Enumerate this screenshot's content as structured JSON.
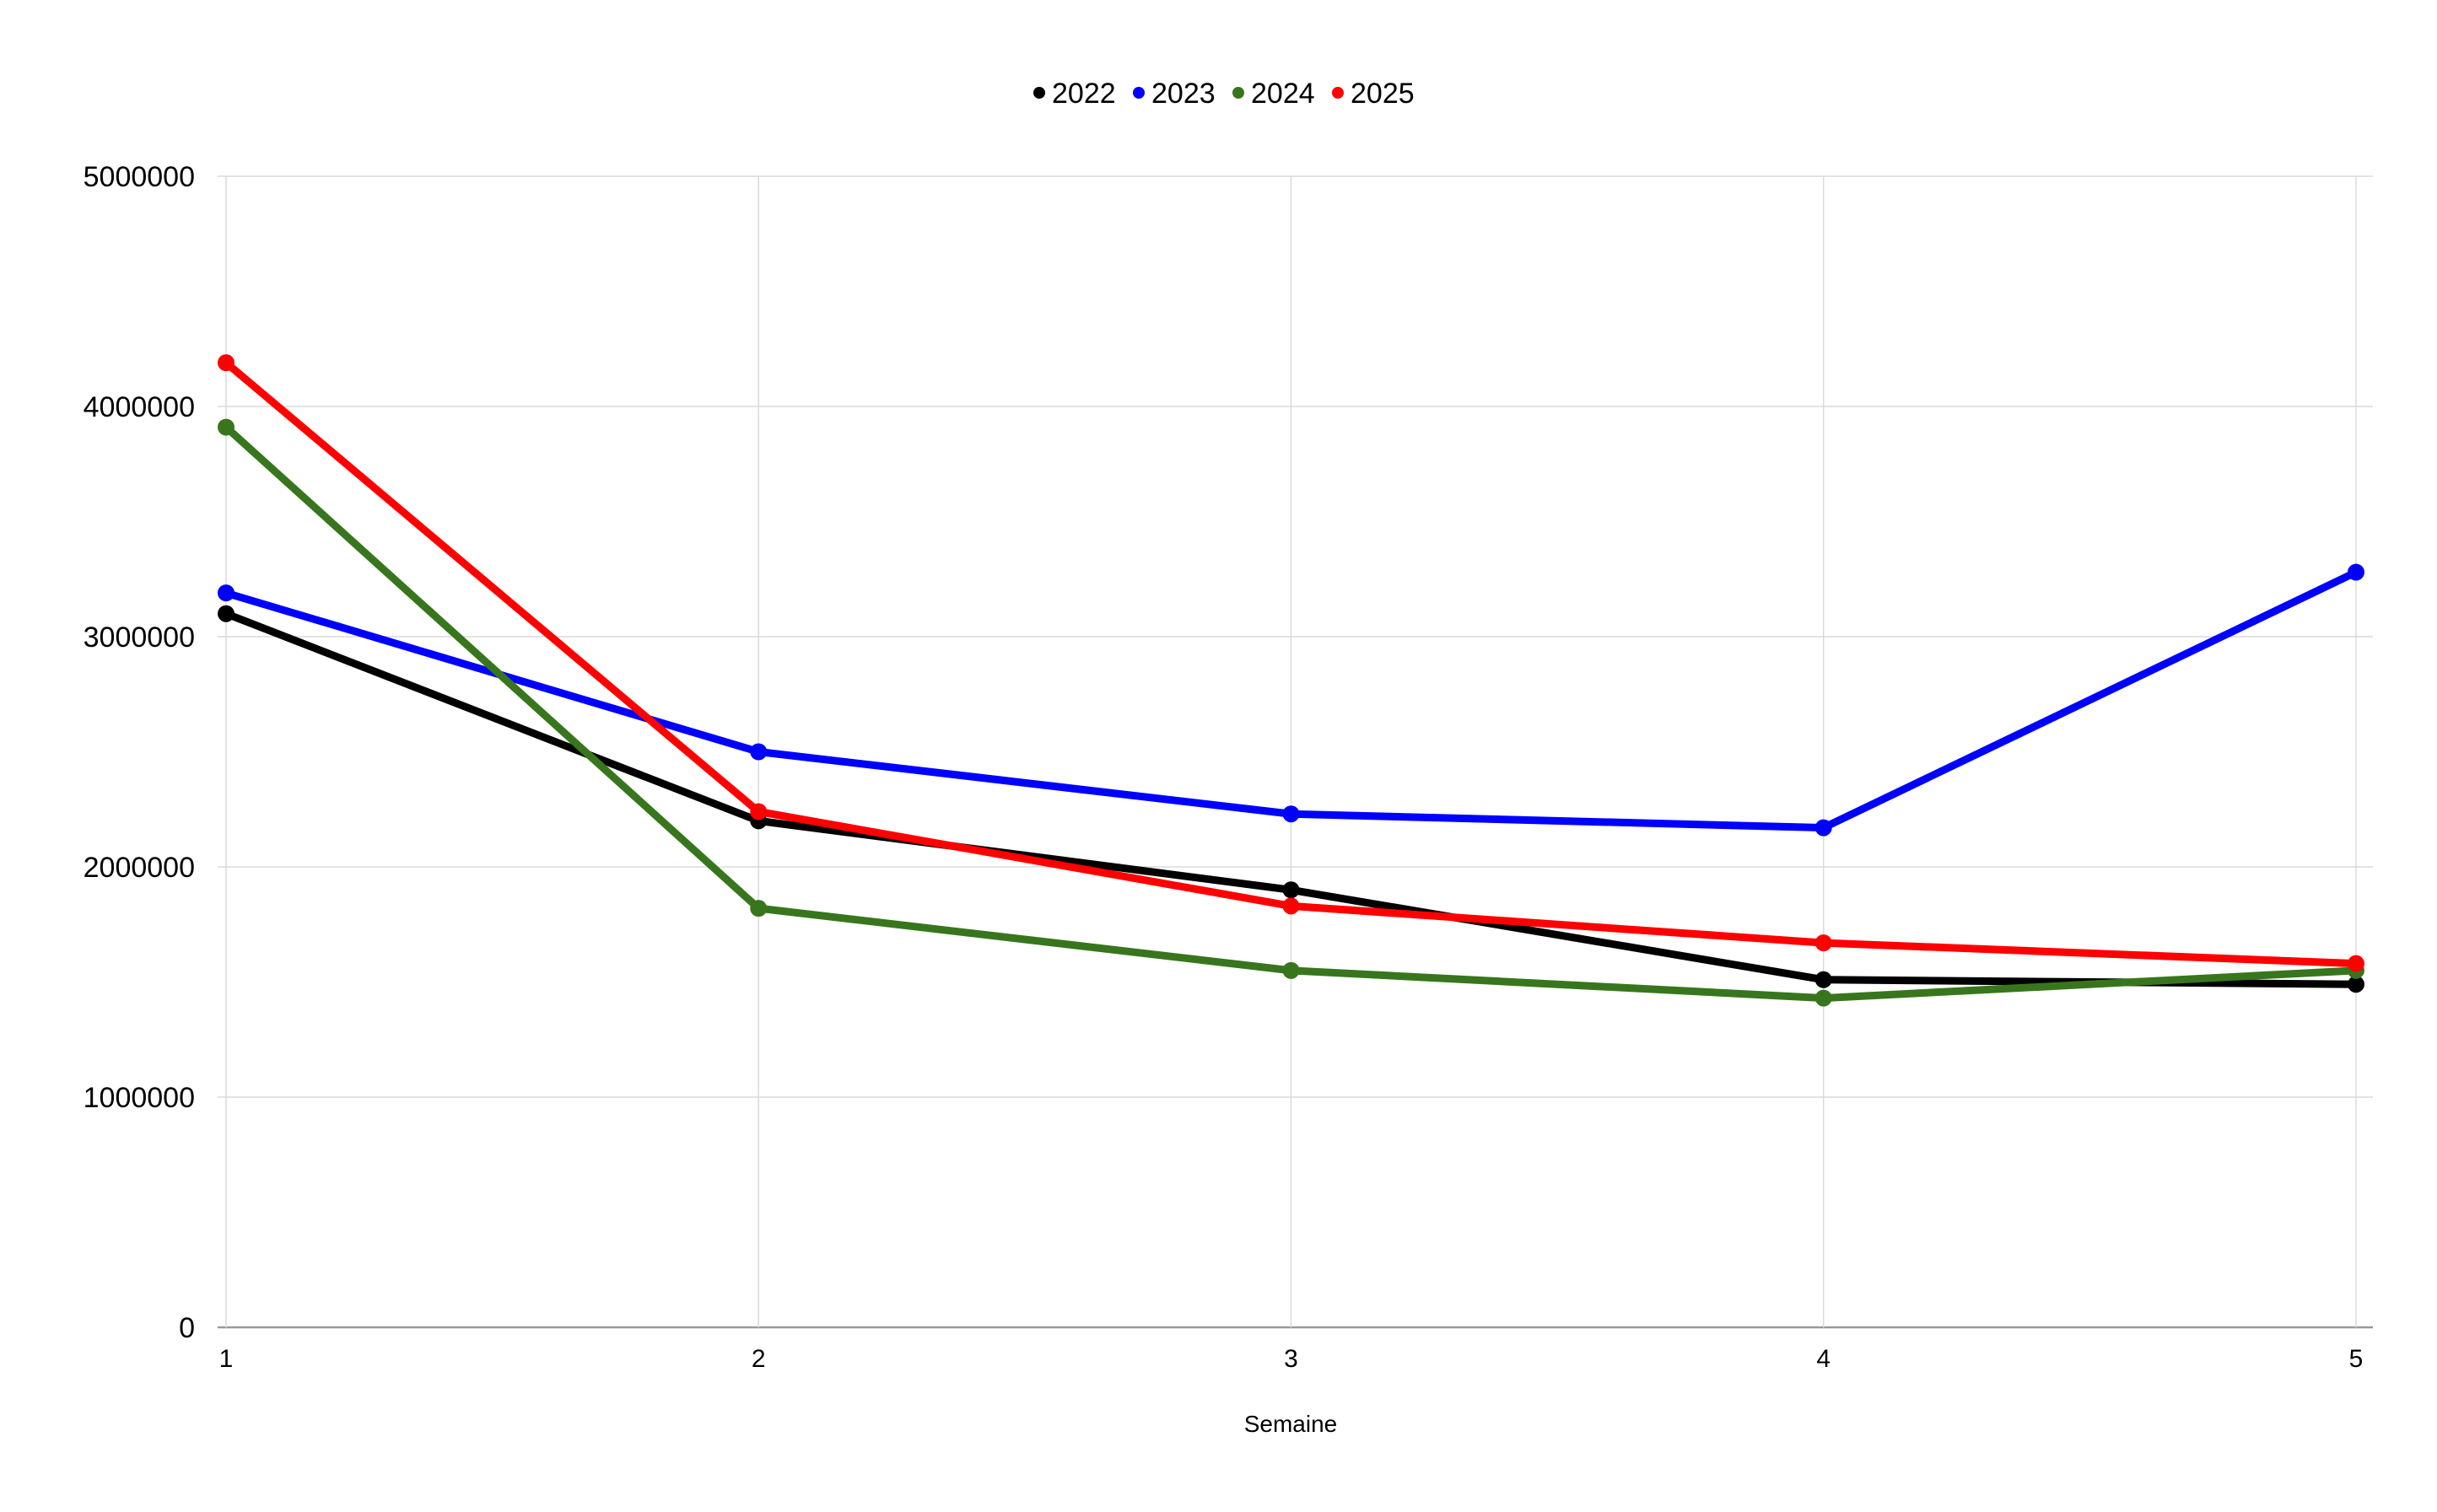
{
  "chart_data": {
    "type": "line",
    "title": "",
    "xlabel": "Semaine",
    "ylabel": "",
    "categories": [
      "1",
      "2",
      "3",
      "4",
      "5"
    ],
    "ylim": [
      0,
      5000000
    ],
    "yticks": [
      "0",
      "1000000",
      "2000000",
      "3000000",
      "4000000",
      "5000000"
    ],
    "grid": true,
    "legend_position": "top",
    "series": [
      {
        "name": "2022",
        "color": "#000000",
        "values": [
          3100000,
          2200000,
          1900000,
          1510000,
          1490000
        ]
      },
      {
        "name": "2023",
        "color": "#0000ff",
        "values": [
          3190000,
          2500000,
          2230000,
          2170000,
          3280000
        ]
      },
      {
        "name": "2024",
        "color": "#38761d",
        "values": [
          3910000,
          1820000,
          1550000,
          1430000,
          1550000
        ]
      },
      {
        "name": "2025",
        "color": "#ff0000",
        "values": [
          4190000,
          2240000,
          1830000,
          1670000,
          1580000
        ]
      }
    ]
  }
}
